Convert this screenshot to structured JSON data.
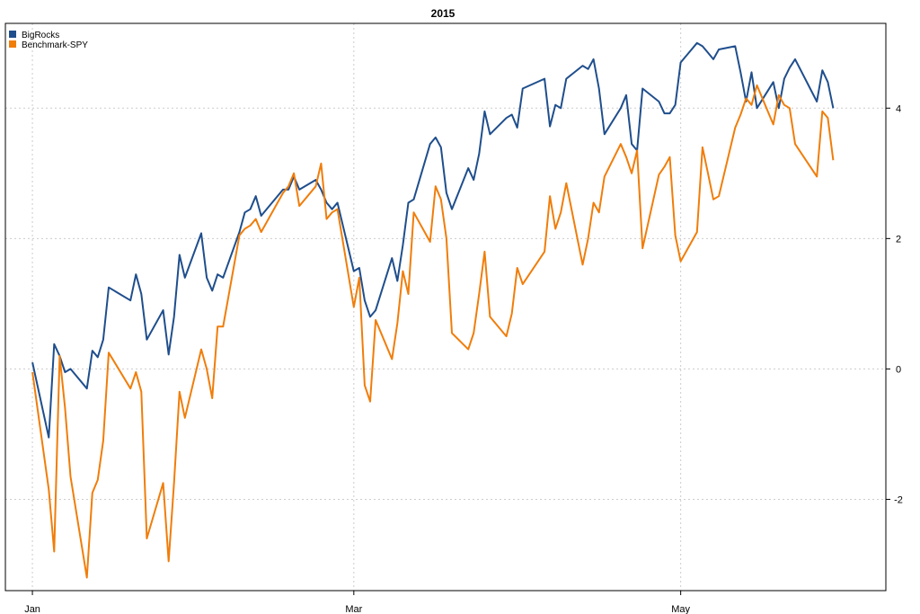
{
  "chart_data": {
    "type": "line",
    "title": "2015",
    "xlabel": "",
    "ylabel": "",
    "x_ticks": [
      "Jan",
      "Mar",
      "May"
    ],
    "y_ticks": [
      -2,
      0,
      2,
      4
    ],
    "ylim": [
      -3.4,
      5.3
    ],
    "xlim": [
      "2015-01-01",
      "2015-06-07"
    ],
    "grid": true,
    "legend_position": "top-left",
    "y_axis_side": "right",
    "x": [
      "2015-01-02",
      "2015-01-05",
      "2015-01-06",
      "2015-01-07",
      "2015-01-08",
      "2015-01-09",
      "2015-01-12",
      "2015-01-13",
      "2015-01-14",
      "2015-01-15",
      "2015-01-16",
      "2015-01-20",
      "2015-01-21",
      "2015-01-22",
      "2015-01-23",
      "2015-01-26",
      "2015-01-27",
      "2015-01-28",
      "2015-01-29",
      "2015-01-30",
      "2015-02-02",
      "2015-02-03",
      "2015-02-04",
      "2015-02-05",
      "2015-02-06",
      "2015-02-09",
      "2015-02-10",
      "2015-02-11",
      "2015-02-12",
      "2015-02-13",
      "2015-02-17",
      "2015-02-18",
      "2015-02-19",
      "2015-02-20",
      "2015-02-23",
      "2015-02-24",
      "2015-02-25",
      "2015-02-26",
      "2015-02-27",
      "2015-03-02",
      "2015-03-03",
      "2015-03-04",
      "2015-03-05",
      "2015-03-06",
      "2015-03-09",
      "2015-03-10",
      "2015-03-11",
      "2015-03-12",
      "2015-03-13",
      "2015-03-16",
      "2015-03-17",
      "2015-03-18",
      "2015-03-19",
      "2015-03-20",
      "2015-03-23",
      "2015-03-24",
      "2015-03-25",
      "2015-03-26",
      "2015-03-27",
      "2015-03-30",
      "2015-03-31",
      "2015-04-01",
      "2015-04-02",
      "2015-04-06",
      "2015-04-07",
      "2015-04-08",
      "2015-04-09",
      "2015-04-10",
      "2015-04-13",
      "2015-04-14",
      "2015-04-15",
      "2015-04-16",
      "2015-04-17",
      "2015-04-20",
      "2015-04-21",
      "2015-04-22",
      "2015-04-23",
      "2015-04-24",
      "2015-04-27",
      "2015-04-28",
      "2015-04-29",
      "2015-04-30",
      "2015-05-01",
      "2015-05-04",
      "2015-05-05",
      "2015-05-06",
      "2015-05-07",
      "2015-05-08",
      "2015-05-11",
      "2015-05-12",
      "2015-05-13",
      "2015-05-14",
      "2015-05-15",
      "2015-05-18",
      "2015-05-19",
      "2015-05-20",
      "2015-05-21",
      "2015-05-22",
      "2015-05-26",
      "2015-05-27",
      "2015-05-28",
      "2015-05-29"
    ],
    "series": [
      {
        "name": "BigRocks",
        "color": "#1f4e8c",
        "values": [
          0.1,
          -1.05,
          0.38,
          0.2,
          -0.05,
          0.0,
          -0.3,
          0.28,
          0.18,
          0.45,
          1.25,
          1.05,
          1.45,
          1.15,
          0.45,
          0.9,
          0.22,
          0.8,
          1.75,
          1.4,
          2.08,
          1.4,
          1.2,
          1.45,
          1.4,
          2.1,
          2.4,
          2.45,
          2.65,
          2.35,
          2.75,
          2.75,
          2.95,
          2.75,
          2.9,
          2.75,
          2.55,
          2.45,
          2.55,
          1.5,
          1.55,
          1.05,
          0.8,
          0.9,
          1.7,
          1.35,
          1.9,
          2.55,
          2.6,
          3.45,
          3.55,
          3.4,
          2.7,
          2.45,
          3.08,
          2.9,
          3.3,
          3.95,
          3.6,
          3.85,
          3.9,
          3.7,
          4.3,
          4.45,
          3.72,
          4.05,
          4.0,
          4.45,
          4.65,
          4.6,
          4.75,
          4.3,
          3.6,
          4.0,
          4.2,
          3.45,
          3.35,
          4.3,
          4.1,
          3.92,
          3.92,
          4.05,
          4.7,
          5.0,
          4.95,
          4.85,
          4.75,
          4.9,
          4.95,
          4.55,
          4.1,
          4.55,
          4.0,
          4.4,
          4.0,
          4.45,
          4.62,
          4.75,
          4.1,
          4.58,
          4.4,
          4.0
        ]
      },
      {
        "name": "Benchmark-SPY",
        "color": "#f07d0a",
        "values": [
          -0.05,
          -1.85,
          -2.8,
          0.2,
          -0.6,
          -1.65,
          -3.2,
          -1.9,
          -1.7,
          -1.1,
          0.25,
          -0.3,
          -0.05,
          -0.35,
          -2.6,
          -1.75,
          -2.95,
          -1.75,
          -0.35,
          -0.75,
          0.3,
          0.0,
          -0.45,
          0.65,
          0.65,
          2.05,
          2.15,
          2.2,
          2.3,
          2.1,
          2.7,
          2.8,
          3.0,
          2.5,
          2.8,
          3.15,
          2.3,
          2.4,
          2.45,
          0.95,
          1.4,
          -0.25,
          -0.5,
          0.75,
          0.15,
          0.7,
          1.5,
          1.15,
          2.4,
          1.95,
          2.8,
          2.6,
          2.0,
          0.55,
          0.3,
          0.55,
          1.15,
          1.8,
          0.8,
          0.5,
          0.85,
          1.55,
          1.3,
          1.8,
          2.65,
          2.15,
          2.4,
          2.85,
          1.6,
          2.0,
          2.55,
          2.4,
          2.95,
          3.45,
          3.25,
          3.0,
          3.35,
          1.85,
          2.98,
          3.1,
          3.25,
          2.05,
          1.65,
          2.1,
          3.4,
          3.0,
          2.6,
          2.65,
          3.7,
          3.9,
          4.15,
          4.05,
          4.35,
          3.75,
          4.2,
          4.05,
          4.0,
          3.45,
          2.95,
          3.95,
          3.85,
          3.2
        ]
      }
    ]
  }
}
